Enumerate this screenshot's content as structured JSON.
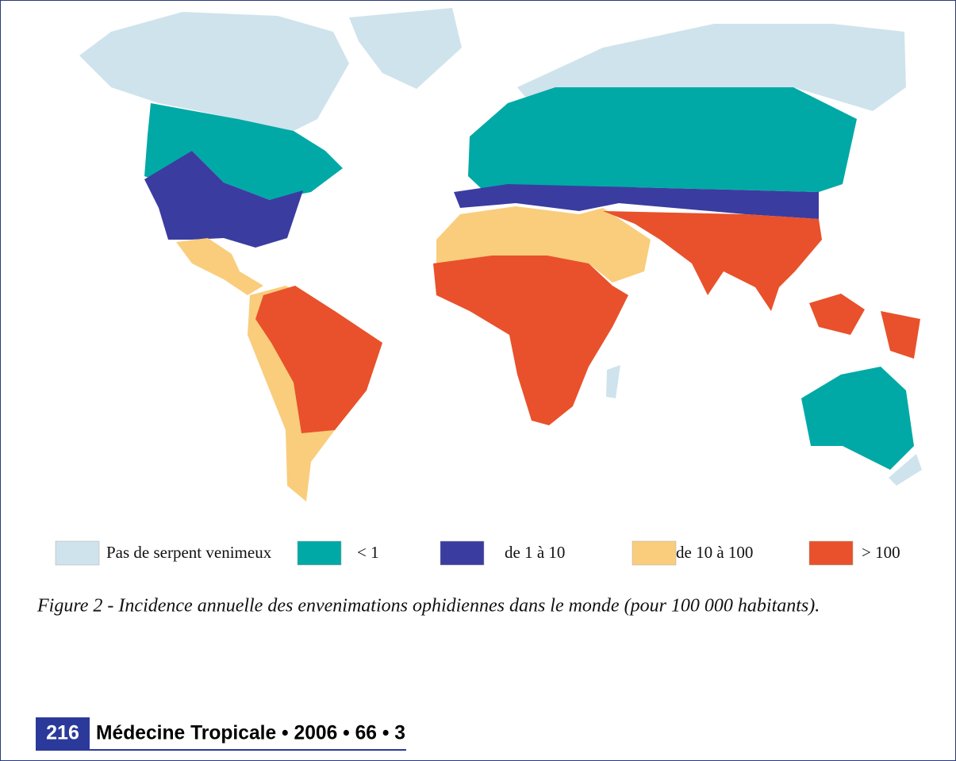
{
  "map": {
    "legend": [
      {
        "label": "Pas de serpent venimeux",
        "color": "#cfe3ec"
      },
      {
        "label": "< 1",
        "color": "#00a9a6"
      },
      {
        "label": "de 1 à 10",
        "color": "#3b3ca0"
      },
      {
        "label": "de 10 à 100",
        "color": "#f9cd7c"
      },
      {
        "label": "> 100",
        "color": "#e8512b"
      }
    ],
    "caption": "Figure 2 - Incidence annuelle des envenimations ophidiennes dans le monde (pour 100 000 habitants)."
  },
  "footer": {
    "page": "216",
    "journal": "Médecine Tropicale • 2006 • 66 • 3"
  }
}
